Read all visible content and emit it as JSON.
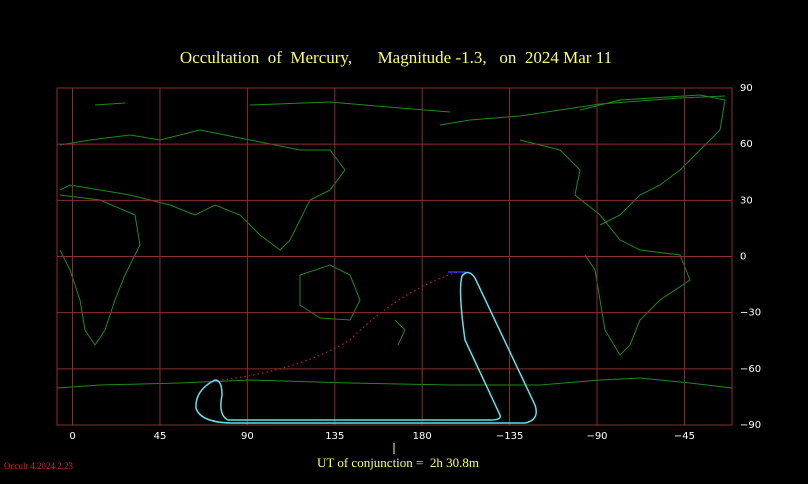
{
  "map": {
    "title": "Occultation  of  Mercury,      Magnitude -1.3,   on  2024 Mar 11",
    "xlim": [
      -8,
      339.5
    ],
    "ylim": [
      -90,
      90
    ],
    "xticks": [
      0,
      45,
      90,
      135,
      180,
      {
        "value": 225,
        "label": "−135"
      },
      {
        "value": 270,
        "label": "−90"
      },
      {
        "value": 315,
        "label": "−45"
      }
    ],
    "yticks": [
      90,
      60,
      30,
      0,
      {
        "value": -30,
        "label": "−30"
      },
      {
        "value": -60,
        "label": "−60"
      },
      {
        "value": -90,
        "label": "−90"
      }
    ],
    "footer": "UT of conjunction =  2h 30.8m",
    "version": "Occult 4.2024.2.23"
  }
}
